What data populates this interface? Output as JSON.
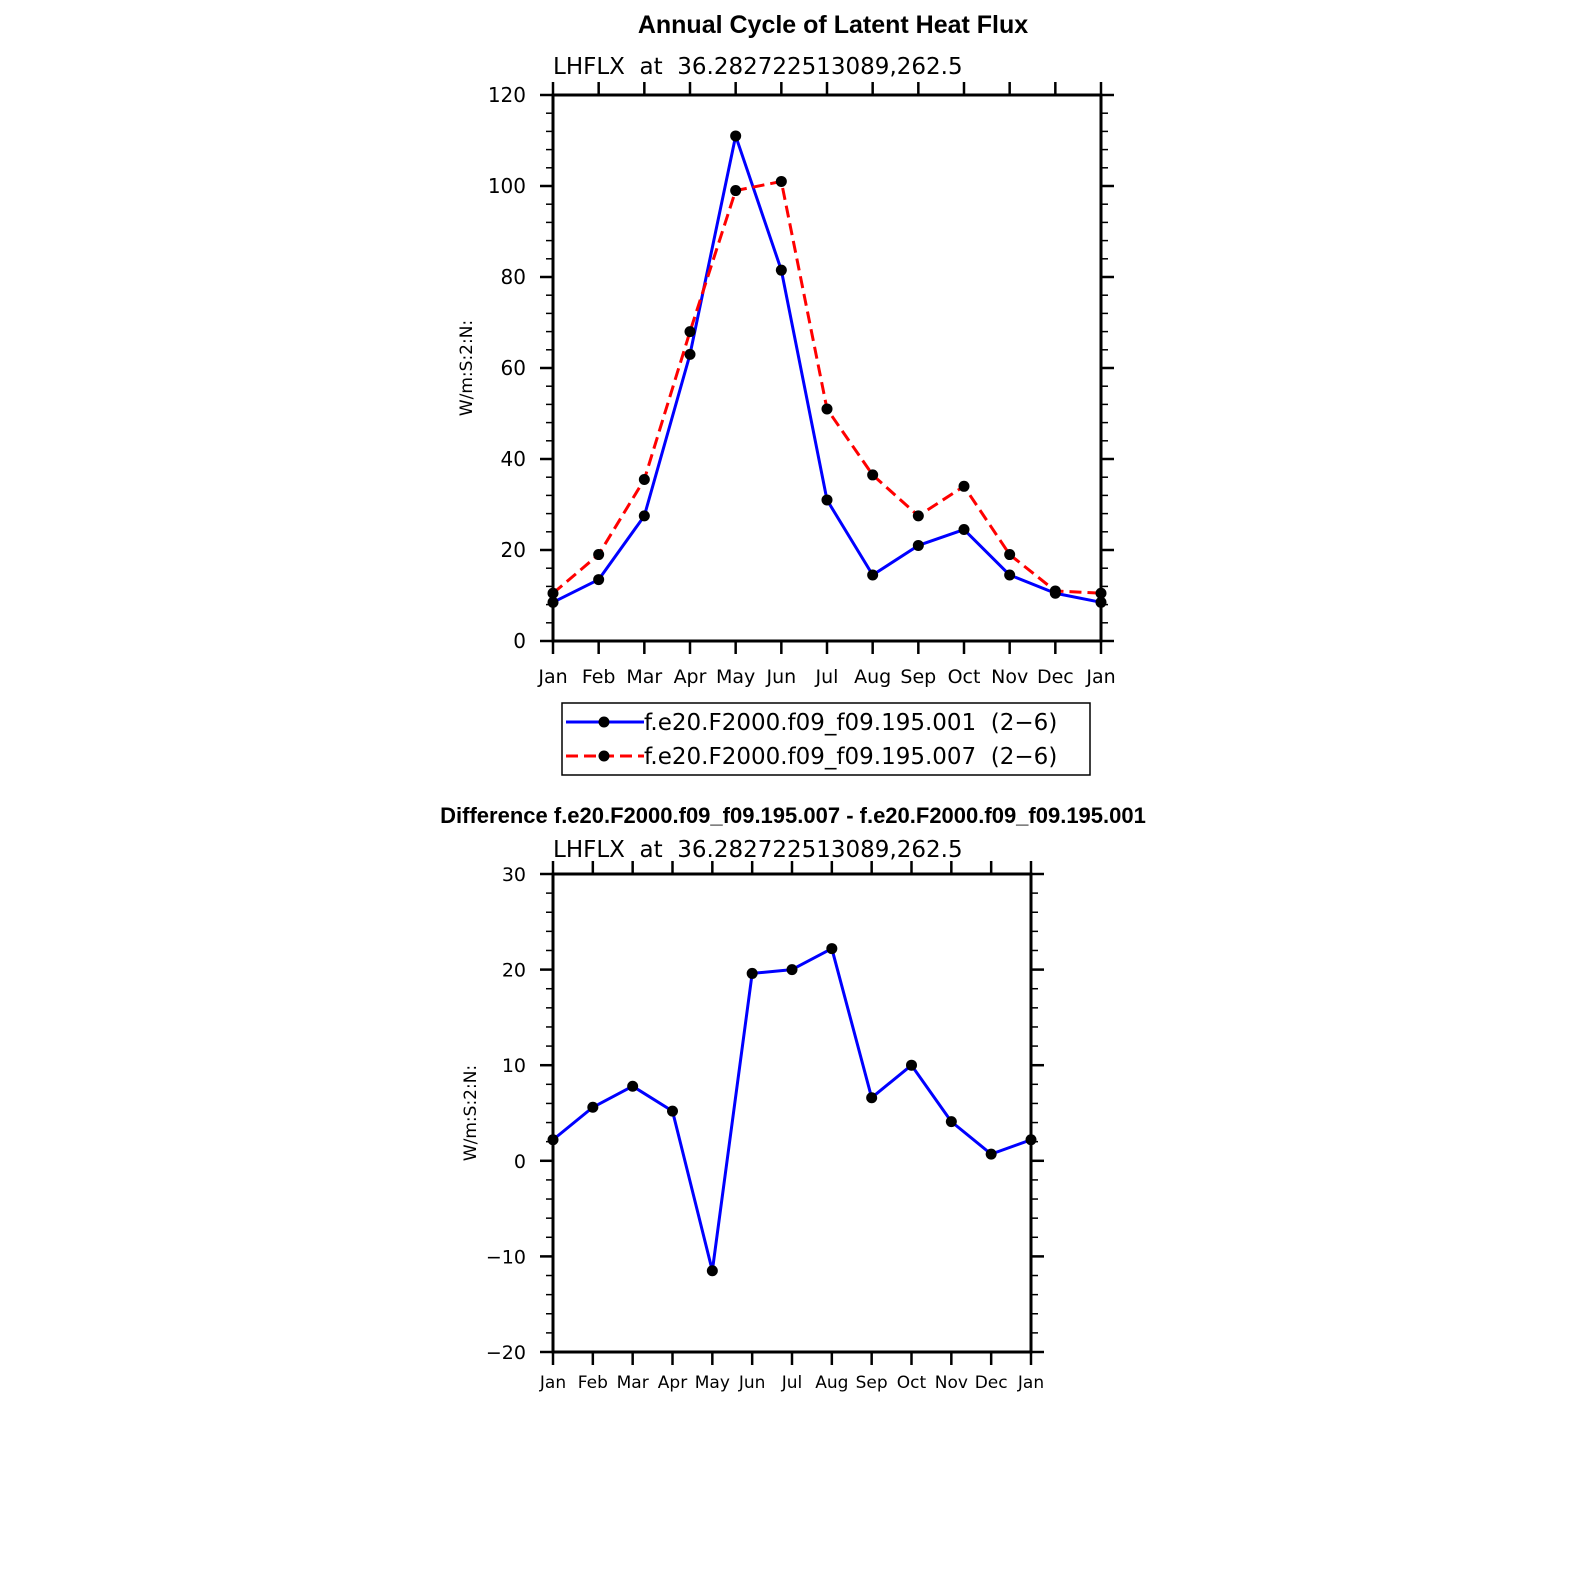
{
  "chart_data": [
    {
      "type": "line",
      "title": "Annual Cycle of Latent Heat Flux",
      "subtitle": "LHFLX  at  36.282722513089,262.5",
      "ylabel": "W/m:S:2:N:",
      "xlabel": "",
      "categories": [
        "Jan",
        "Feb",
        "Mar",
        "Apr",
        "May",
        "Jun",
        "Jul",
        "Aug",
        "Sep",
        "Oct",
        "Nov",
        "Dec",
        "Jan"
      ],
      "ylim": [
        0,
        120
      ],
      "yticks": [
        "0",
        "20",
        "40",
        "60",
        "80",
        "100",
        "120"
      ],
      "series": [
        {
          "name": "f.e20.F2000.f09_f09.195.001  (2−6)",
          "color": "#0000ff",
          "dash": "solid",
          "values": [
            8.5,
            13.5,
            27.5,
            63,
            111,
            81.5,
            31,
            14.5,
            21,
            24.5,
            14.5,
            10.5,
            8.5
          ]
        },
        {
          "name": "f.e20.F2000.f09_f09.195.007  (2−6)",
          "color": "#ff0000",
          "dash": "dashed",
          "values": [
            10.5,
            19,
            35.5,
            68,
            99,
            101,
            51,
            36.5,
            27.5,
            34,
            19,
            11,
            10.5
          ]
        }
      ],
      "legend": "bottom-center",
      "grid": false
    },
    {
      "type": "line",
      "title": "Difference f.e20.F2000.f09_f09.195.007 - f.e20.F2000.f09_f09.195.001",
      "subtitle": "LHFLX  at  36.282722513089,262.5",
      "ylabel": "W/m:S:2:N:",
      "xlabel": "",
      "categories": [
        "Jan",
        "Feb",
        "Mar",
        "Apr",
        "May",
        "Jun",
        "Jul",
        "Aug",
        "Sep",
        "Oct",
        "Nov",
        "Dec",
        "Jan"
      ],
      "ylim": [
        -20,
        30
      ],
      "yticks": [
        "−20",
        "−10",
        "0",
        "10",
        "20",
        "30"
      ],
      "series": [
        {
          "color": "#0000ff",
          "dash": "solid",
          "values": [
            2.2,
            5.6,
            7.8,
            5.2,
            -11.5,
            19.6,
            20,
            22.2,
            6.6,
            10,
            4.1,
            0.7,
            2.2
          ]
        }
      ],
      "grid": false
    }
  ]
}
